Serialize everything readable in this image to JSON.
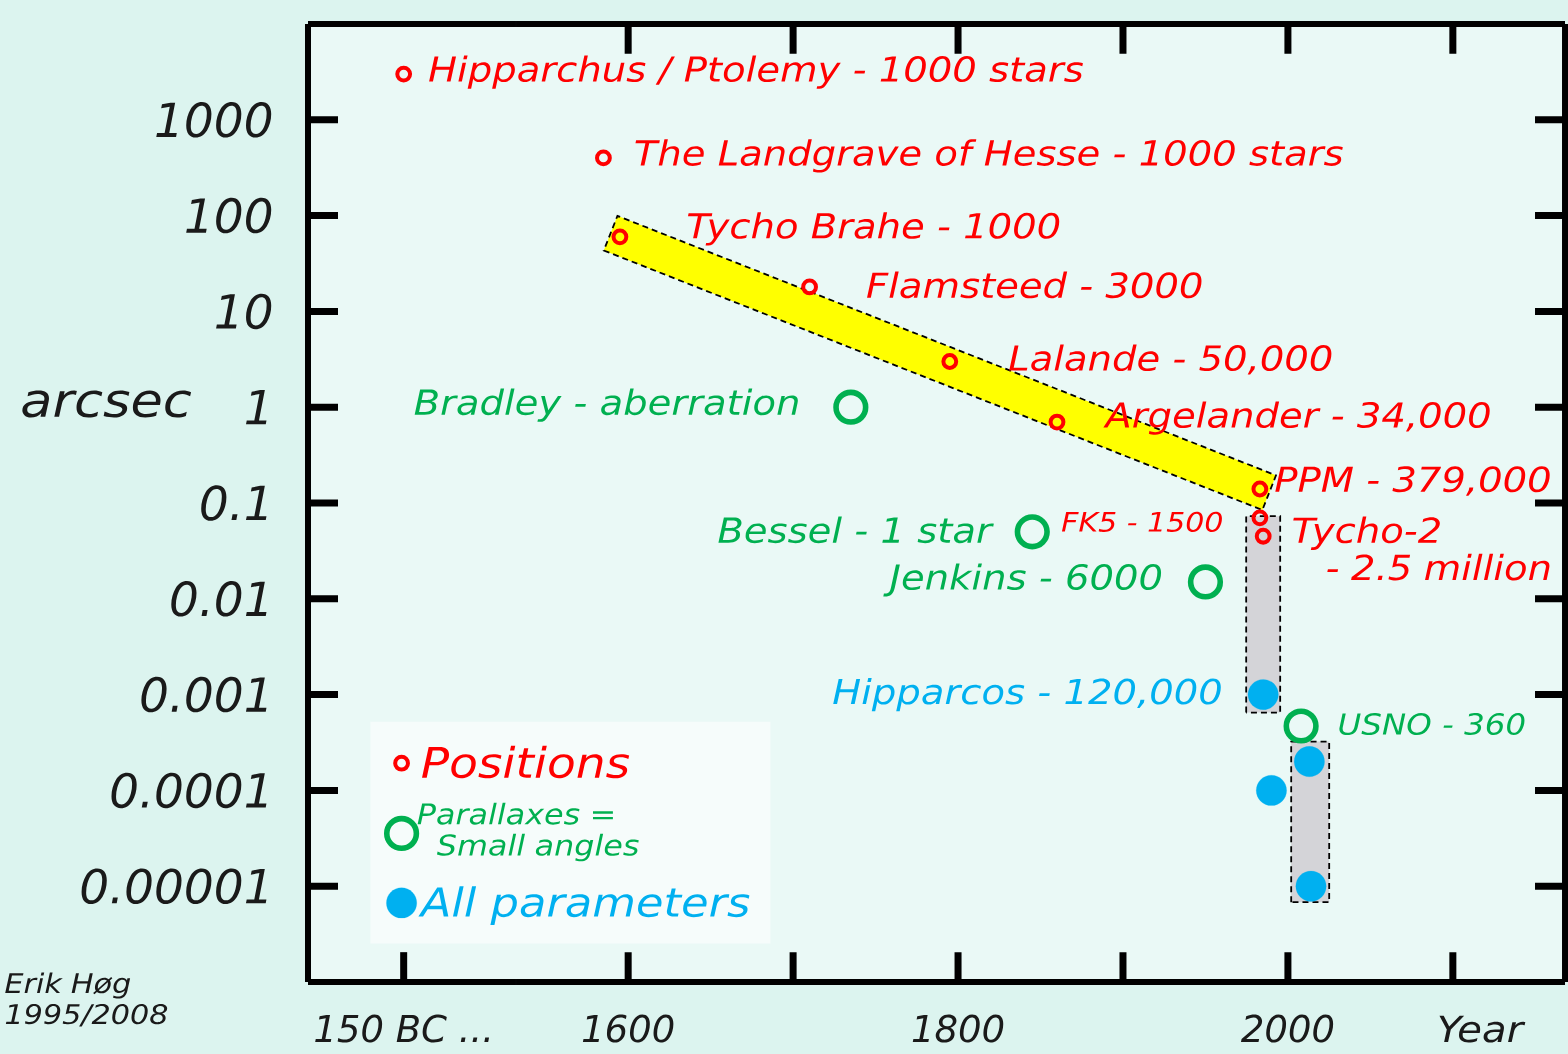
{
  "chart_data": [
    {
      "type": "scatter",
      "categories": [
        "150 BC ..."
      ],
      "ylabel": "arcsec",
      "ylim": [
        1e-06,
        10000
      ],
      "yticks": [
        {
          "value": 1e-05,
          "label": "0.00001"
        },
        0.0001,
        0.001,
        0.01,
        0.1,
        1,
        10,
        100,
        1000
      ],
      "log": "y",
      "marker": "circle",
      "series": [
        {
          "color": "#ff0000",
          "values": [
            3000
          ]
        }
      ],
      "annotations": [
        {
          "text": "Hipparchus / Ptolemy - 1000 stars",
          "x": "150 BC ...",
          "y": 3000
        },
        "Erik Høg 1995/2008"
      ]
    },
    {
      "type": "scatter",
      "xlabel": "Year",
      "xlim": [
        1532,
        2168
      ],
      "xticks": [
        1600,
        {
          "value": 1700,
          "label": null
        },
        1800,
        {
          "value": 1900,
          "label": null
        },
        2000,
        {
          "value": 2100,
          "label": null
        }
      ],
      "ylim": [
        1e-06,
        10000
      ],
      "yticks": [
        1e-05,
        0.0001,
        0.001,
        0.01,
        0.1,
        1,
        10,
        100,
        1000
      ],
      "tick_labels": "x",
      "log": "y",
      "marker": "circle",
      "legend": "bottom left",
      "series": [
        {
          "name": "Positions",
          "color": "#ff0000",
          "x": [
            1585,
            1595,
            1710,
            1795,
            1860,
            1983,
            1983,
            1985
          ],
          "values": [
            400,
            60,
            18,
            3,
            0.7,
            0.14,
            0.07,
            0.045
          ]
        },
        {
          "name": "Parallaxes = Small angles",
          "color": "#00b050",
          "x": [
            1735,
            1845,
            1950,
            2008
          ],
          "values": [
            1,
            0.05,
            0.015,
            0.00047
          ]
        },
        {
          "name": "All parameters",
          "color": "#00b0f0",
          "x": [
            1985,
            1990,
            2013,
            2014
          ],
          "values": [
            0.001,
            0.0001,
            0.0002,
            1e-05
          ]
        }
      ],
      "annotations": [
        {
          "text": "The Landgrave of Hesse - 1000 stars",
          "x": 1585,
          "y": 400
        },
        {
          "text": "Tycho Brahe - 1000",
          "x": 1595,
          "y": 60
        },
        {
          "text": "Flamsteed - 3000",
          "x": 1710,
          "y": 18
        },
        {
          "text": "Lalande - 50,000",
          "x": 1795,
          "y": 3
        },
        {
          "text": "Argelander - 34,000",
          "x": 1860,
          "y": 0.7
        },
        {
          "text": "PPM - 379,000",
          "x": 1983,
          "y": 0.14
        },
        {
          "text": "FK5 - 1500",
          "x": 1983,
          "y": 0.07
        },
        {
          "text": "Tycho-2 - 2.5 million",
          "x": 1985,
          "y": 0.045
        },
        {
          "text": "Bradley - aberration",
          "x": 1735,
          "y": 1
        },
        {
          "text": "Bessel - 1 star",
          "x": 1845,
          "y": 0.05
        },
        {
          "text": "Jenkins - 6000",
          "x": 1950,
          "y": 0.015
        },
        {
          "text": "USNO - 360",
          "x": 2008,
          "y": 0.00047
        },
        {
          "text": "Hipparcos - 120,000",
          "x": 1985,
          "y": 0.001
        }
      ]
    }
  ]
}
